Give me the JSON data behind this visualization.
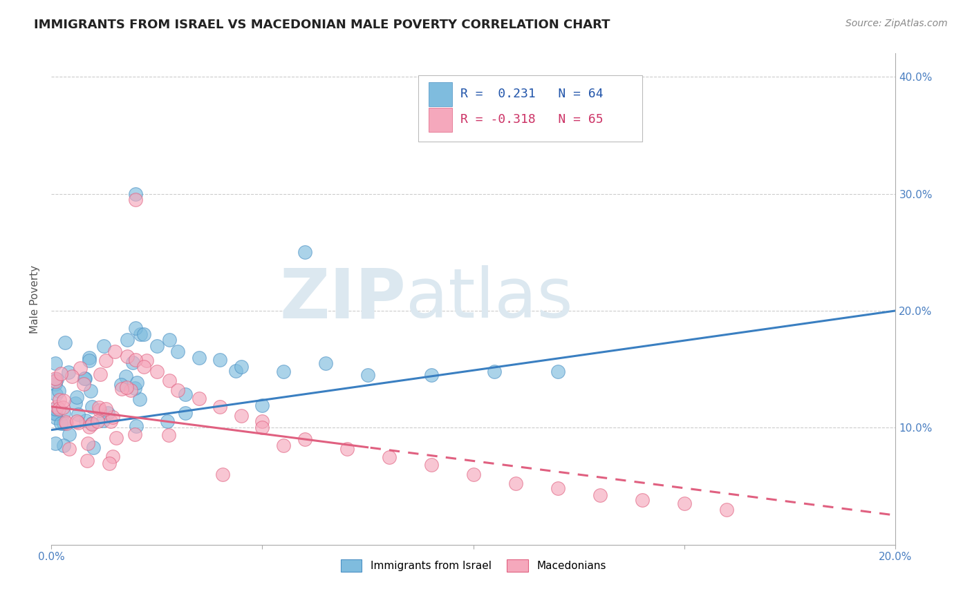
{
  "title": "IMMIGRANTS FROM ISRAEL VS MACEDONIAN MALE POVERTY CORRELATION CHART",
  "source_text": "Source: ZipAtlas.com",
  "ylabel_text": "Male Poverty",
  "x_min": 0.0,
  "x_max": 0.2,
  "y_min": 0.0,
  "y_max": 0.42,
  "x_tick_positions": [
    0.0,
    0.05,
    0.1,
    0.15,
    0.2
  ],
  "x_tick_labels": [
    "0.0%",
    "",
    "",
    "",
    "20.0%"
  ],
  "y_tick_positions": [
    0.0,
    0.1,
    0.2,
    0.3,
    0.4
  ],
  "y_tick_labels_right": [
    "",
    "10.0%",
    "20.0%",
    "30.0%",
    "40.0%"
  ],
  "color_blue": "#7fbcde",
  "color_pink": "#f5a8bc",
  "color_edge_blue": "#4a90c4",
  "color_edge_pink": "#e06080",
  "color_line_blue": "#3a7fc1",
  "color_line_pink": "#e06080",
  "watermark_color": "#dce8f0",
  "title_fontsize": 13,
  "axis_label_fontsize": 11,
  "tick_fontsize": 11,
  "legend_fontsize": 12,
  "source_fontsize": 10,
  "blue_line_start_y": 0.098,
  "blue_line_end_y": 0.2,
  "pink_line_start_y": 0.118,
  "pink_line_end_y": 0.025,
  "pink_solid_cutoff": 0.075
}
